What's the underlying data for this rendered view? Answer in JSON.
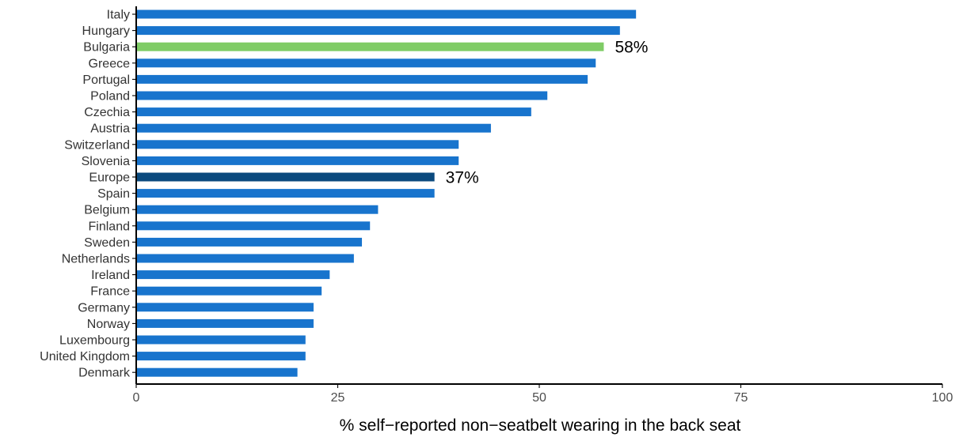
{
  "chart_data": {
    "type": "bar",
    "orientation": "horizontal",
    "title": "",
    "xlabel": "% self−reported non−seatbelt wearing in the back seat",
    "ylabel": "",
    "xlim": [
      0,
      100
    ],
    "x_ticks": [
      "0",
      "25",
      "50",
      "75",
      "100"
    ],
    "x_tick_values": [
      0,
      25,
      50,
      75,
      100
    ],
    "grid": false,
    "legend": "none",
    "categories": [
      "Italy",
      "Hungary",
      "Bulgaria",
      "Greece",
      "Portugal",
      "Poland",
      "Czechia",
      "Austria",
      "Switzerland",
      "Slovenia",
      "Europe",
      "Spain",
      "Belgium",
      "Finland",
      "Sweden",
      "Netherlands",
      "Ireland",
      "France",
      "Germany",
      "Norway",
      "Luxembourg",
      "United Kingdom",
      "Denmark"
    ],
    "values": [
      62,
      60,
      58,
      57,
      56,
      51,
      49,
      44,
      40,
      40,
      37,
      37,
      30,
      29,
      28,
      27,
      24,
      23,
      22,
      22,
      21,
      21,
      20
    ],
    "highlight": {
      "Bulgaria": {
        "color": "#7fcc66",
        "label": "58%"
      },
      "Europe": {
        "color": "#0b4a7e",
        "label": "37%"
      }
    },
    "colors": {
      "default_bar": "#1874cd",
      "axis": "#000000"
    }
  }
}
